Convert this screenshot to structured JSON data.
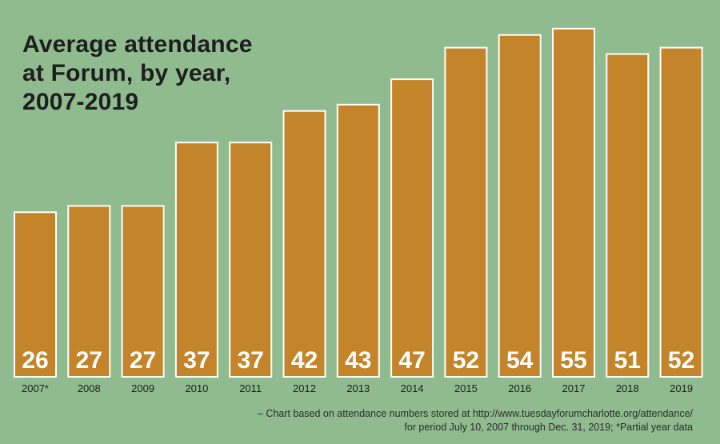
{
  "chart_data": {
    "type": "bar",
    "title_lines": [
      "Average attendance",
      "at Forum, by year,",
      "2007-2019"
    ],
    "categories": [
      "2007*",
      "2008",
      "2009",
      "2010",
      "2011",
      "2012",
      "2013",
      "2014",
      "2015",
      "2016",
      "2017",
      "2018",
      "2019"
    ],
    "values": [
      26,
      27,
      27,
      37,
      37,
      42,
      43,
      47,
      52,
      54,
      55,
      51,
      52
    ],
    "data_labels": [
      "26",
      "27",
      "27",
      "37",
      "37",
      "42",
      "43",
      "47",
      "52",
      "54",
      "55",
      "51",
      "52"
    ],
    "ylim": [
      0,
      57
    ],
    "grid": false,
    "colors": {
      "background": "#8fbb8f",
      "bar": "#c4842a",
      "bar_outline": "#ffffff",
      "value_label": "#ffffff"
    }
  },
  "footnote": {
    "line1": "– Chart based on attendance numbers stored at http://www.tuesdayforumcharlotte.org/attendance/",
    "line2": "for period July 10, 2007 through Dec. 31, 2019; *Partial year data"
  }
}
